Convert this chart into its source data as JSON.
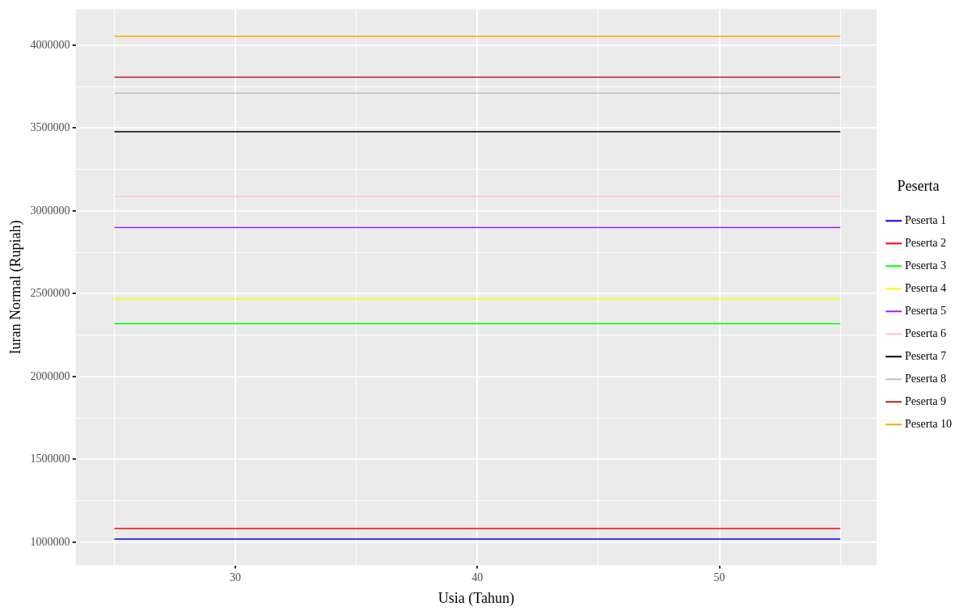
{
  "chart_data": {
    "type": "line",
    "xlabel": "Usia (Tahun)",
    "ylabel": "Iuran Normal (Rupiah)",
    "legend_title": "Peserta",
    "legend": "right",
    "grid": true,
    "marker": "none",
    "line_style": "solid",
    "xlim": [
      23.4,
      56.5
    ],
    "xticks": [
      {
        "value": 25,
        "label": null
      },
      30,
      {
        "value": 35,
        "label": null
      },
      40,
      {
        "value": 45,
        "label": null
      },
      50,
      {
        "value": 55,
        "label": null
      }
    ],
    "ylim": [
      860000,
      4217000
    ],
    "yticks": [
      1000000,
      {
        "value": 1250000,
        "label": null
      },
      1500000,
      {
        "value": 1750000,
        "label": null
      },
      2000000,
      {
        "value": 2250000,
        "label": null
      },
      2500000,
      {
        "value": 2750000,
        "label": null
      },
      3000000,
      {
        "value": 3250000,
        "label": null
      },
      3500000,
      {
        "value": 3750000,
        "label": null
      },
      4000000
    ],
    "x": [
      25,
      55
    ],
    "series": [
      {
        "name": "Peserta 1",
        "color": "#0000ff",
        "values": [
          1019000,
          1019000
        ]
      },
      {
        "name": "Peserta 2",
        "color": "#ff0000",
        "values": [
          1082000,
          1082000
        ]
      },
      {
        "name": "Peserta 3",
        "color": "#00ff00",
        "values": [
          2319000,
          2319000
        ]
      },
      {
        "name": "Peserta 4",
        "color": "#ffff00",
        "values": [
          2469000,
          2469000
        ]
      },
      {
        "name": "Peserta 5",
        "color": "#a020f0",
        "values": [
          2899000,
          2899000
        ]
      },
      {
        "name": "Peserta 6",
        "color": "#ffc0cb",
        "values": [
          3087000,
          3087000
        ]
      },
      {
        "name": "Peserta 7",
        "color": "#000000",
        "values": [
          3478000,
          3478000
        ]
      },
      {
        "name": "Peserta 8",
        "color": "#bebebe",
        "values": [
          3710000,
          3710000
        ]
      },
      {
        "name": "Peserta 9",
        "color": "#b22222",
        "values": [
          3807000,
          3807000
        ]
      },
      {
        "name": "Peserta 10",
        "color": "#ffa500",
        "values": [
          4053000,
          4053000
        ]
      }
    ]
  }
}
